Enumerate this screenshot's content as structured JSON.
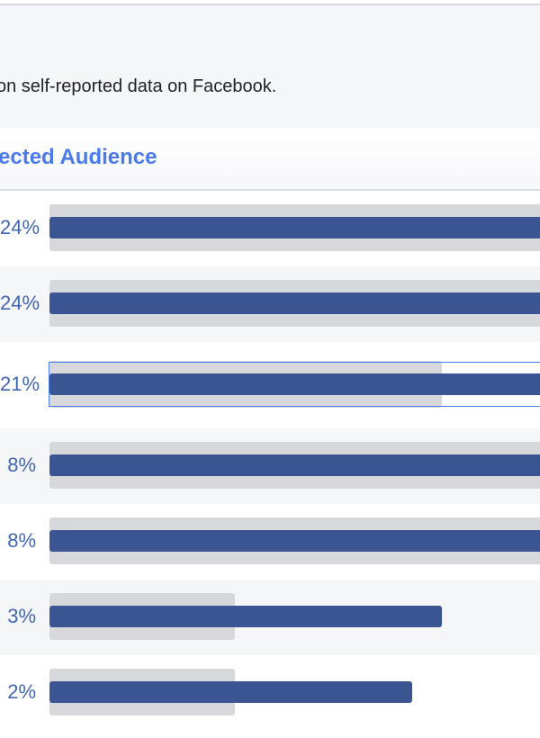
{
  "description": "on self-reported data on Facebook.",
  "section_title": "ected Audience",
  "rows": [
    {
      "percent": "24%"
    },
    {
      "percent": "24%"
    },
    {
      "percent": "21%"
    },
    {
      "percent": "8%"
    },
    {
      "percent": "8%"
    },
    {
      "percent": "3%"
    },
    {
      "percent": "2%"
    }
  ]
}
